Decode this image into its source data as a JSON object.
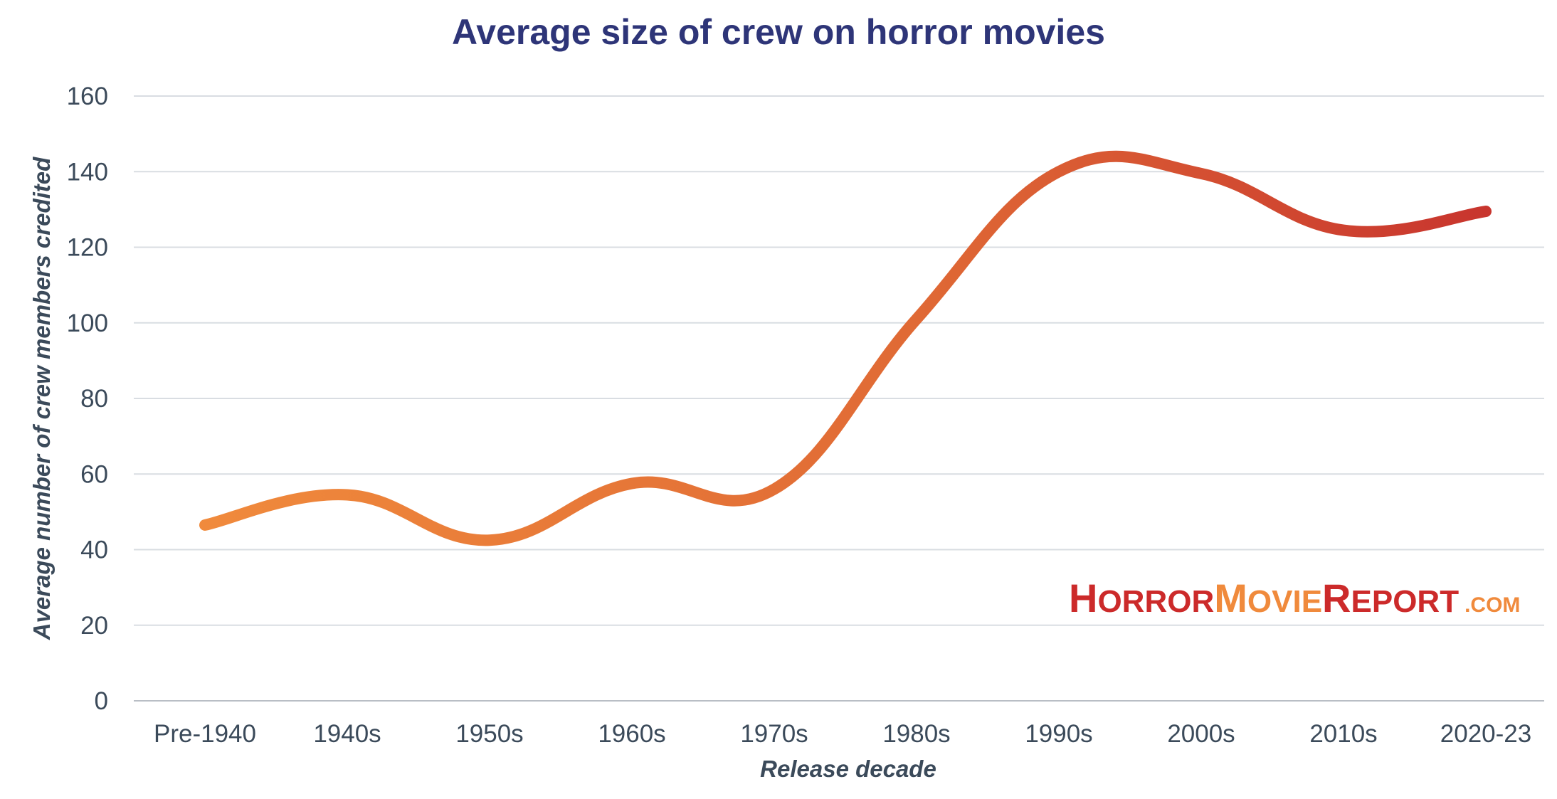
{
  "chart_data": {
    "type": "line",
    "title": "Average size of crew on horror movies",
    "xlabel": "Release decade",
    "ylabel": "Average number of crew members credited",
    "categories": [
      "Pre-1940",
      "1940s",
      "1950s",
      "1960s",
      "1970s",
      "1980s",
      "1990s",
      "2000s",
      "2010s",
      "2020-23"
    ],
    "series": [
      {
        "values": [
          46.5,
          54.5,
          42.5,
          57.5,
          56,
          101,
          140,
          139.5,
          124.5,
          129.5
        ]
      }
    ],
    "ylim": [
      0,
      160
    ],
    "yticks": [
      0,
      20,
      40,
      60,
      80,
      100,
      120,
      140,
      160
    ],
    "grid": true,
    "line_gradient": [
      "#f08a3c",
      "#c8352e"
    ]
  },
  "watermark": {
    "parts": [
      {
        "text": "HORROR",
        "color": "#cc2a2a"
      },
      {
        "text": "MOVIE",
        "color": "#f08a3c"
      },
      {
        "text": "REPORT",
        "color": "#cc2a2a"
      },
      {
        "text": ".COM",
        "color": "#f08a3c"
      }
    ]
  }
}
